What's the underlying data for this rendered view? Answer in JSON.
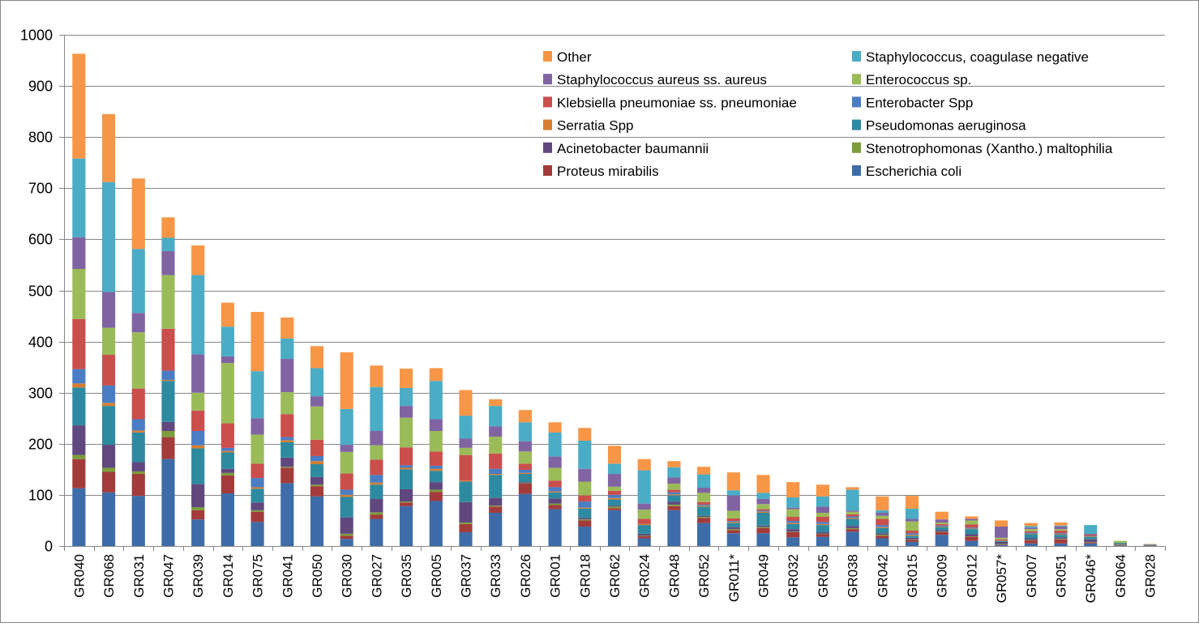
{
  "chart_data": {
    "type": "bar",
    "stacked": true,
    "title": "",
    "xlabel": "",
    "ylabel": "",
    "ylim": [
      0,
      1000
    ],
    "yticks": [
      0,
      100,
      200,
      300,
      400,
      500,
      600,
      700,
      800,
      900,
      1000
    ],
    "grid": true,
    "legend_position": "top-right",
    "categories": [
      "GR040",
      "GR068",
      "GR031",
      "GR047",
      "GR039",
      "GR014",
      "GR075",
      "GR041",
      "GR050",
      "GR030",
      "GR027",
      "GR035",
      "GR005",
      "GR037",
      "GR033",
      "GR026",
      "GR001",
      "GR018",
      "GR062",
      "GR024",
      "GR048",
      "GR052",
      "GR011*",
      "GR049",
      "GR032",
      "GR055",
      "GR038",
      "GR042",
      "GR015",
      "GR009",
      "GR012",
      "GR057*",
      "GR007",
      "GR051",
      "GR046*",
      "GR064",
      "GR028"
    ],
    "series": [
      {
        "name": "Escherichia coli",
        "color": "#3E6CA8",
        "values": [
          113,
          105,
          98,
          170,
          52,
          103,
          47,
          123,
          97,
          14,
          53,
          78,
          88,
          27,
          65,
          102,
          72,
          38,
          70,
          15,
          70,
          45,
          25,
          25,
          17,
          18,
          28,
          15,
          8,
          22,
          10,
          2,
          5,
          5,
          5,
          1,
          1
        ]
      },
      {
        "name": "Proteus mirabilis",
        "color": "#A33B3B",
        "values": [
          57,
          40,
          43,
          43,
          18,
          35,
          20,
          30,
          20,
          6,
          8,
          7,
          18,
          16,
          12,
          20,
          8,
          12,
          4,
          4,
          8,
          10,
          6,
          10,
          10,
          5,
          5,
          5,
          4,
          5,
          8,
          1,
          6,
          8,
          2,
          1,
          1
        ]
      },
      {
        "name": "Stenotrophomonas (Xantho.) maltophilia",
        "color": "#7B9D3B",
        "values": [
          8,
          8,
          5,
          12,
          6,
          5,
          3,
          2,
          3,
          4,
          5,
          2,
          4,
          3,
          2,
          1,
          3,
          2,
          3,
          1,
          3,
          2,
          2,
          2,
          1,
          1,
          2,
          2,
          1,
          1,
          1,
          1,
          1,
          1,
          1,
          1,
          0
        ]
      },
      {
        "name": "Acinetobacter baumannii",
        "color": "#60487E",
        "values": [
          58,
          45,
          18,
          18,
          45,
          8,
          15,
          18,
          15,
          32,
          26,
          24,
          15,
          40,
          15,
          2,
          10,
          3,
          2,
          4,
          6,
          2,
          4,
          3,
          5,
          3,
          4,
          3,
          3,
          3,
          4,
          4,
          3,
          3,
          5,
          1,
          0
        ]
      },
      {
        "name": "Pseudomonas aeruginosa",
        "color": "#2E8AA0",
        "values": [
          74,
          76,
          58,
          80,
          70,
          32,
          27,
          30,
          25,
          40,
          28,
          39,
          22,
          40,
          45,
          16,
          12,
          18,
          12,
          17,
          12,
          18,
          8,
          25,
          10,
          14,
          14,
          10,
          4,
          6,
          10,
          2,
          8,
          5,
          5,
          2,
          1
        ]
      },
      {
        "name": "Serratia Spp",
        "color": "#D57E30",
        "values": [
          8,
          6,
          4,
          2,
          6,
          3,
          3,
          4,
          6,
          4,
          4,
          3,
          4,
          2,
          2,
          2,
          2,
          2,
          3,
          2,
          2,
          2,
          2,
          2,
          2,
          2,
          2,
          2,
          2,
          1,
          1,
          1,
          1,
          1,
          1,
          0,
          0
        ]
      },
      {
        "name": "Enterobacter Spp",
        "color": "#4A7DC4",
        "values": [
          28,
          34,
          22,
          18,
          28,
          6,
          18,
          6,
          10,
          10,
          15,
          5,
          6,
          0,
          10,
          6,
          8,
          12,
          6,
          0,
          4,
          2,
          2,
          2,
          4,
          4,
          3,
          4,
          3,
          2,
          2,
          0,
          2,
          2,
          1,
          0,
          0
        ]
      },
      {
        "name": "Klebsiella pneumoniae ss. pneumoniae",
        "color": "#C94E4C",
        "values": [
          98,
          60,
          60,
          82,
          40,
          48,
          28,
          45,
          32,
          32,
          30,
          35,
          28,
          50,
          30,
          12,
          13,
          12,
          8,
          10,
          5,
          5,
          5,
          3,
          8,
          10,
          4,
          12,
          5,
          3,
          6,
          2,
          3,
          5,
          3,
          0,
          0
        ]
      },
      {
        "name": "Enterococcus sp.",
        "color": "#9BBB59",
        "values": [
          98,
          53,
          110,
          105,
          35,
          118,
          57,
          43,
          65,
          42,
          28,
          58,
          40,
          14,
          33,
          24,
          25,
          27,
          8,
          18,
          12,
          18,
          15,
          10,
          15,
          8,
          5,
          6,
          18,
          3,
          8,
          3,
          4,
          3,
          0,
          4,
          0
        ]
      },
      {
        "name": "Staphylococcus aureus ss. aureus",
        "color": "#8064A2",
        "values": [
          62,
          70,
          38,
          47,
          75,
          13,
          32,
          65,
          20,
          14,
          28,
          23,
          23,
          18,
          20,
          20,
          22,
          25,
          25,
          12,
          12,
          10,
          30,
          10,
          3,
          12,
          2,
          6,
          5,
          6,
          3,
          22,
          3,
          5,
          0,
          0,
          0
        ]
      },
      {
        "name": "Staphylococcus, coagulase negative",
        "color": "#4BACC6",
        "values": [
          154,
          215,
          125,
          26,
          155,
          58,
          92,
          40,
          55,
          70,
          86,
          35,
          75,
          45,
          40,
          37,
          47,
          55,
          20,
          65,
          20,
          26,
          10,
          12,
          20,
          20,
          41,
          5,
          20,
          0,
          0,
          0,
          3,
          2,
          18,
          0,
          0
        ]
      },
      {
        "name": "Other",
        "color": "#F79646",
        "values": [
          205,
          133,
          138,
          40,
          58,
          47,
          116,
          41,
          43,
          111,
          42,
          38,
          25,
          50,
          13,
          24,
          20,
          25,
          35,
          22,
          12,
          15,
          35,
          35,
          30,
          23,
          5,
          27,
          25,
          15,
          5,
          12,
          6,
          6,
          0,
          0,
          1
        ]
      }
    ]
  }
}
